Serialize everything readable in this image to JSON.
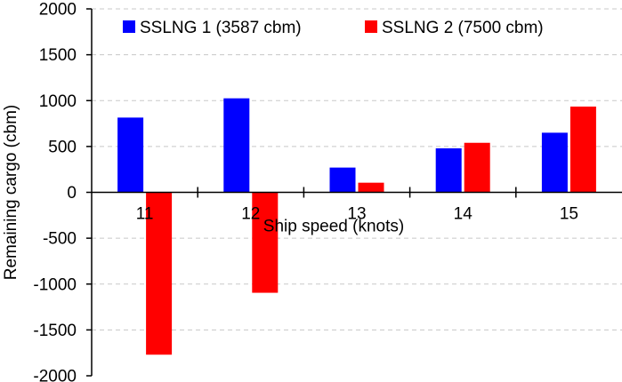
{
  "chart_data": {
    "type": "bar",
    "xlabel": "Ship speed (knots)",
    "ylabel": "Remaining cargo (cbm)",
    "ylim": [
      -2000,
      2000
    ],
    "yticks": [
      2000,
      1500,
      1000,
      500,
      0,
      -500,
      -1000,
      -1500,
      -2000
    ],
    "grid": true,
    "legend_position": "top",
    "categories": [
      "11",
      "12",
      "13",
      "14",
      "15"
    ],
    "series": [
      {
        "name": "SSLNG 1 (3587 cbm)",
        "color": "#0000ff",
        "values": [
          815,
          1025,
          270,
          480,
          650
        ]
      },
      {
        "name": "SSLNG 2 (7500 cbm)",
        "color": "#ff0000",
        "values": [
          -1770,
          -1095,
          105,
          540,
          935
        ]
      }
    ]
  }
}
